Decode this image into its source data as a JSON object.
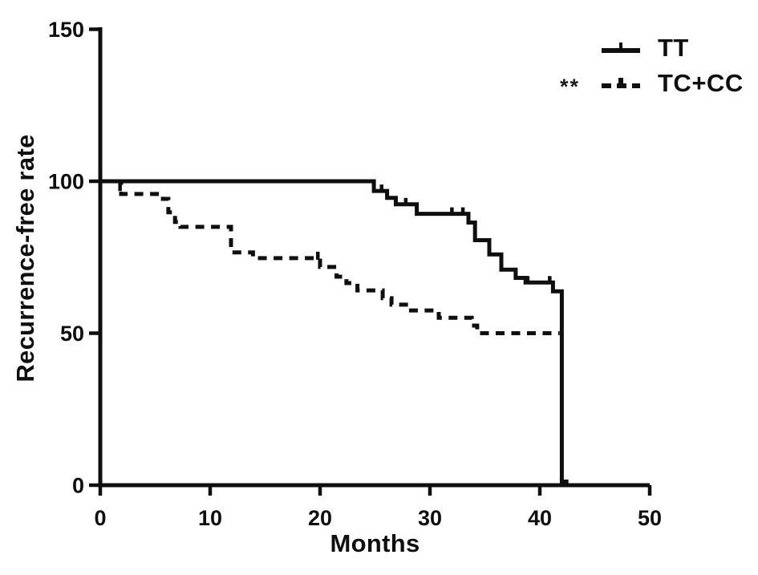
{
  "page": {
    "background": "#ffffff",
    "ink": "#0f0f0f"
  },
  "chart_data": {
    "type": "line",
    "variant": "kaplan_meier_step",
    "title": "",
    "xlabel": "Months",
    "ylabel": "Recurrence-free rate",
    "xlim": [
      0,
      50
    ],
    "ylim": [
      0,
      150
    ],
    "x_ticks": [
      0,
      10,
      20,
      30,
      40,
      50
    ],
    "y_ticks": [
      0,
      50,
      100,
      150
    ],
    "grid": false,
    "legend_position": "top-right",
    "significance": "**",
    "series": [
      {
        "name": "TT",
        "line_style": "solid",
        "color": "#0f0f0f",
        "step_points": [
          [
            0,
            100
          ],
          [
            24.9,
            96.8
          ],
          [
            26.1,
            94.5
          ],
          [
            26.9,
            92.4
          ],
          [
            28.8,
            89.3
          ],
          [
            33.5,
            86.4
          ],
          [
            34.1,
            80.6
          ],
          [
            35.4,
            75.9
          ],
          [
            36.5,
            70.9
          ],
          [
            37.8,
            68.2
          ],
          [
            38.7,
            66.7
          ],
          [
            41.2,
            63.8
          ],
          [
            42,
            1.2
          ],
          [
            42.6,
            1.2
          ]
        ],
        "censor_marks": [
          [
            25.6,
            96.8
          ],
          [
            27.8,
            92.4
          ],
          [
            32,
            89.3
          ],
          [
            33,
            89.3
          ],
          [
            38.9,
            66.7
          ],
          [
            40.9,
            66.7
          ]
        ]
      },
      {
        "name": "TC+CC",
        "line_style": "dashed",
        "color": "#0f0f0f",
        "step_points": [
          [
            0,
            100
          ],
          [
            1.9,
            95.8
          ],
          [
            5.7,
            94.2
          ],
          [
            6.2,
            89.8
          ],
          [
            6.8,
            86.6
          ],
          [
            7.3,
            85
          ],
          [
            11.9,
            76.6
          ],
          [
            13.9,
            74.7
          ],
          [
            20,
            71.8
          ],
          [
            21.5,
            68.6
          ],
          [
            22.4,
            66.5
          ],
          [
            23.4,
            64.1
          ],
          [
            25.7,
            61.5
          ],
          [
            26.5,
            59.4
          ],
          [
            28,
            57.5
          ],
          [
            30.8,
            55.1
          ],
          [
            33.8,
            52.5
          ],
          [
            34.3,
            50
          ],
          [
            41.8,
            50
          ]
        ],
        "censor_marks": [
          [
            1.8,
            97.3
          ],
          [
            19.8,
            74.7
          ]
        ]
      }
    ]
  }
}
